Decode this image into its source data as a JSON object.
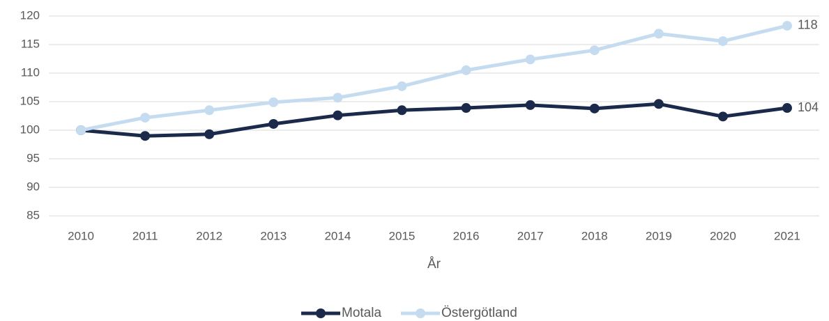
{
  "chart_data": {
    "type": "line",
    "categories": [
      "2010",
      "2011",
      "2012",
      "2013",
      "2014",
      "2015",
      "2016",
      "2017",
      "2018",
      "2019",
      "2020",
      "2021"
    ],
    "x_label": "År",
    "series": [
      {
        "name": "Motala",
        "color": "#1b2a4a",
        "values": [
          100,
          99.0,
          99.3,
          101.1,
          102.6,
          103.5,
          103.9,
          104.4,
          103.8,
          104.6,
          102.4,
          103.9
        ],
        "value_labels": [
          null,
          null,
          null,
          null,
          null,
          null,
          null,
          null,
          null,
          null,
          null,
          "104"
        ]
      },
      {
        "name": "Östergötland",
        "color": "#c5dcf0",
        "values": [
          100,
          102.2,
          103.5,
          104.9,
          105.7,
          107.7,
          110.5,
          112.4,
          114.0,
          116.9,
          115.6,
          118.3
        ],
        "value_labels": [
          null,
          null,
          null,
          null,
          null,
          null,
          null,
          null,
          null,
          null,
          null,
          "118"
        ]
      }
    ],
    "ylim": [
      85,
      120
    ],
    "yticks": [
      85,
      90,
      95,
      100,
      105,
      110,
      115,
      120
    ],
    "grid": true,
    "legend": "bottom"
  }
}
